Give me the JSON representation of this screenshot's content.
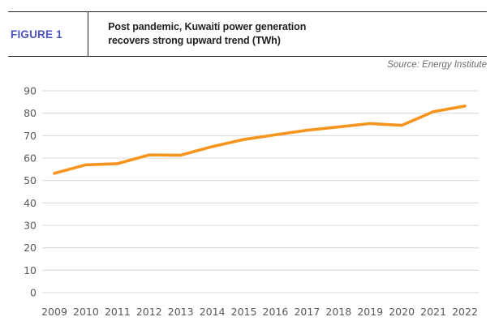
{
  "header": {
    "figure_label": "FIGURE 1",
    "title_line1": "Post pandemic, Kuwaiti power generation",
    "title_line2": "recovers strong upward trend (TWh)",
    "source": "Source: Energy Institute"
  },
  "colors": {
    "accent_line": "#F7941E",
    "figure_label_text": "#4A52C4",
    "grid": "#D9D9D9",
    "tick_text": "#595959",
    "title_text": "#231F20",
    "source_text": "#6D6E71",
    "header_border": "#231F20",
    "background": "#FFFFFF"
  },
  "chart_data": {
    "type": "line",
    "title": "Post pandemic, Kuwaiti power generation recovers strong upward trend (TWh)",
    "categories": [
      "2009",
      "2010",
      "2011",
      "2012",
      "2013",
      "2014",
      "2015",
      "2016",
      "2017",
      "2018",
      "2019",
      "2020",
      "2021",
      "2022"
    ],
    "series": [
      {
        "name": "Kuwaiti power generation (TWh)",
        "values": [
          53.2,
          57.0,
          57.5,
          61.4,
          61.3,
          65.1,
          68.3,
          70.4,
          72.4,
          73.9,
          75.4,
          74.6,
          80.7,
          83.2
        ]
      }
    ],
    "xlabel": "",
    "ylabel": "",
    "ylim": [
      0,
      90
    ],
    "ytick_step": 10,
    "grid": "horizontal-only",
    "legend": "none"
  }
}
